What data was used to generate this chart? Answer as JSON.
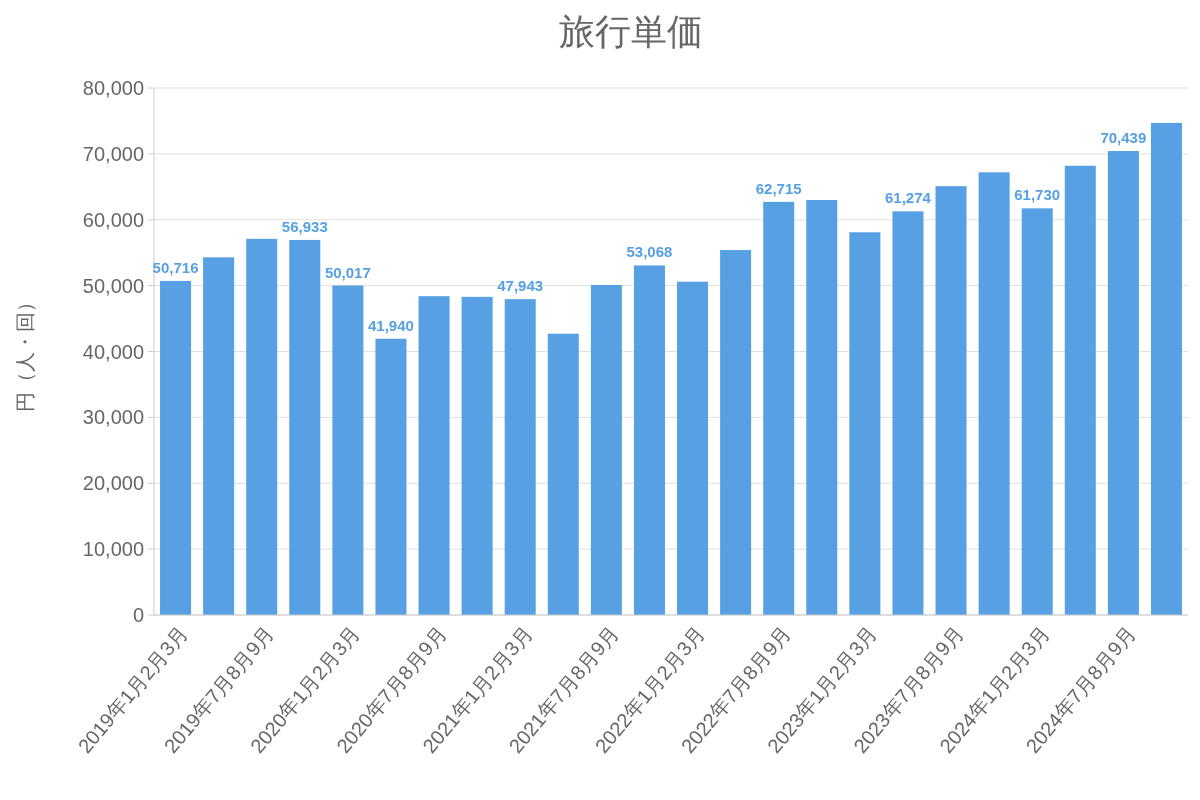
{
  "chart_data": {
    "type": "bar",
    "title": "旅行単価",
    "ylabel": "円（人・回）",
    "categories": [
      "2019年1月2月3月",
      null,
      "2019年7月8月9月",
      null,
      "2020年1月2月3月",
      null,
      "2020年7月8月9月",
      null,
      "2021年1月2月3月",
      null,
      "2021年7月8月9月",
      null,
      "2022年1月2月3月",
      null,
      "2022年7月8月9月",
      null,
      "2023年1月2月3月",
      null,
      "2023年7月8月9月",
      null,
      "2024年1月2月3月",
      null,
      "2024年7月8月9月",
      null
    ],
    "values": [
      50716,
      54300,
      57100,
      56933,
      50017,
      41940,
      48400,
      48300,
      47943,
      42700,
      50100,
      53068,
      50600,
      55400,
      62715,
      63000,
      58100,
      61274,
      65100,
      67200,
      61730,
      68200,
      70439,
      74700
    ],
    "value_labels": [
      "50,716",
      null,
      null,
      "56,933",
      "50,017",
      "41,940",
      null,
      null,
      "47,943",
      null,
      null,
      "53,068",
      null,
      null,
      "62,715",
      null,
      null,
      "61,274",
      null,
      null,
      "61,730",
      null,
      "70,439",
      null
    ],
    "color": "#56a0e3",
    "ylim": [
      0,
      80000
    ],
    "yticks": [
      {
        "value": 0,
        "label": "0"
      },
      {
        "value": 10000,
        "label": "10,000"
      },
      {
        "value": 20000,
        "label": "20,000"
      },
      {
        "value": 30000,
        "label": "30,000"
      },
      {
        "value": 40000,
        "label": "40,000"
      },
      {
        "value": 50000,
        "label": "50,000"
      },
      {
        "value": 60000,
        "label": "60,000"
      },
      {
        "value": 70000,
        "label": "70,000"
      },
      {
        "value": 80000,
        "label": "80,000"
      }
    ],
    "grid": "y"
  }
}
